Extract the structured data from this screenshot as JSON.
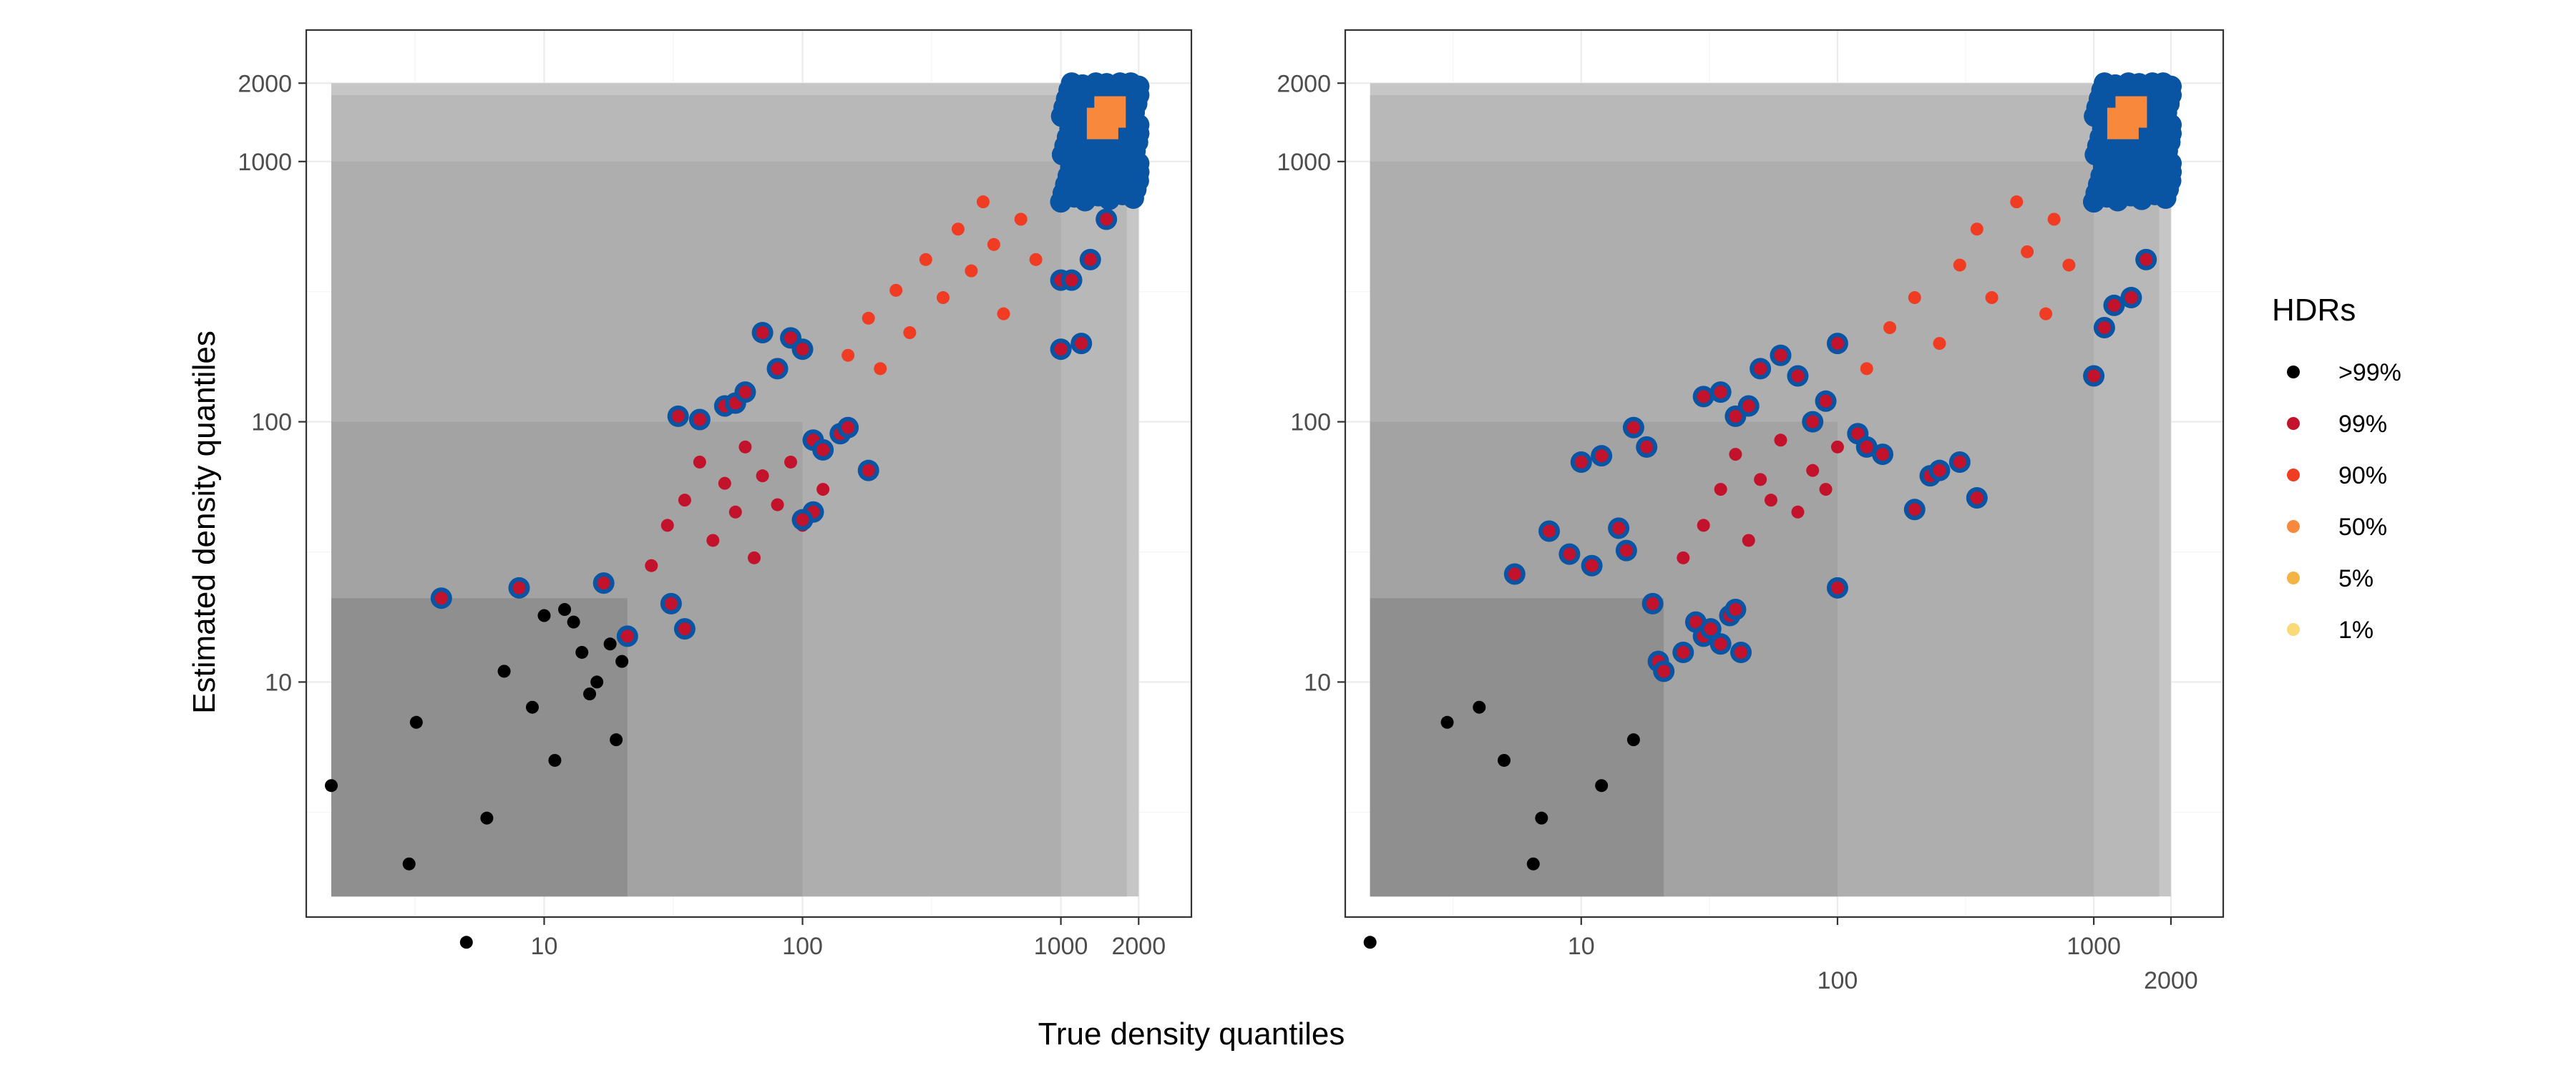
{
  "figure": {
    "xlabel": "True density quantiles",
    "ylabel": "Estimated density quantiles",
    "legend": {
      "title": "HDRs",
      "position": "right",
      "items": [
        {
          "label": ">99%",
          "color": "#000000"
        },
        {
          "label": "99%",
          "color": "#c2122c"
        },
        {
          "label": "90%",
          "color": "#f03c22"
        },
        {
          "label": "50%",
          "color": "#f8893c"
        },
        {
          "label": "5%",
          "color": "#f3b443"
        },
        {
          "label": "1%",
          "color": "#f9da78"
        }
      ]
    },
    "highlight_color": "#0a54a4",
    "band_colors": [
      "#8f8f8f",
      "#a3a3a3",
      "#aeaeae",
      "#b8b8b8",
      "#c6c6c6"
    ]
  },
  "chart_data": [
    {
      "type": "scatter",
      "scale": "log",
      "xlim": [
        1.2,
        3200
      ],
      "ylim": [
        1.25,
        3200
      ],
      "x_ticks": [
        {
          "label": "10",
          "value": 10
        },
        {
          "label": "100",
          "value": 100
        },
        {
          "label": "1000",
          "value": 1000
        },
        {
          "label": "2000",
          "value": 2000
        }
      ],
      "y_ticks": [
        {
          "label": "10",
          "value": 10
        },
        {
          "label": "100",
          "value": 100
        },
        {
          "label": "1000",
          "value": 1000
        },
        {
          "label": "2000",
          "value": 2000
        }
      ],
      "hdr_thresholds_x": [
        1.5,
        21,
        100,
        1000,
        1800,
        2000
      ],
      "hdr_thresholds_y": [
        1.5,
        21,
        100,
        1000,
        1800,
        2000
      ],
      "grid": true,
      "series": [
        {
          "hdr": ">99%",
          "points": [
            [
              1.5,
              4
            ],
            [
              3,
              2
            ],
            [
              3.2,
              7
            ],
            [
              5,
              1
            ],
            [
              6,
              3
            ],
            [
              7,
              11
            ],
            [
              9,
              8
            ],
            [
              10,
              18
            ],
            [
              11,
              5
            ],
            [
              12,
              19
            ],
            [
              13,
              17
            ],
            [
              14,
              13
            ],
            [
              15,
              9
            ],
            [
              16,
              10
            ],
            [
              18,
              14
            ],
            [
              19,
              6
            ],
            [
              20,
              12
            ]
          ]
        },
        {
          "hdr": "99%",
          "points": [
            [
              26,
              28
            ],
            [
              30,
              40
            ],
            [
              35,
              50
            ],
            [
              40,
              70
            ],
            [
              45,
              35
            ],
            [
              50,
              58
            ],
            [
              55,
              45
            ],
            [
              60,
              80
            ],
            [
              65,
              30
            ],
            [
              70,
              62
            ],
            [
              80,
              48
            ],
            [
              90,
              70
            ],
            [
              100,
              40
            ],
            [
              110,
              85
            ],
            [
              120,
              55
            ]
          ]
        },
        {
          "hdr": "90%",
          "points": [
            [
              150,
              180
            ],
            [
              180,
              250
            ],
            [
              200,
              160
            ],
            [
              230,
              320
            ],
            [
              260,
              220
            ],
            [
              300,
              420
            ],
            [
              350,
              300
            ],
            [
              400,
              550
            ],
            [
              450,
              380
            ],
            [
              500,
              700
            ],
            [
              550,
              480
            ],
            [
              600,
              260
            ],
            [
              700,
              600
            ],
            [
              800,
              420
            ]
          ]
        },
        {
          "hdr": "50%",
          "points": [
            [
              1450,
              1400
            ],
            [
              1550,
              1550
            ]
          ]
        },
        {
          "hdr": "highlighted",
          "points": [
            [
              4,
              21
            ],
            [
              8,
              23
            ],
            [
              17,
              24
            ],
            [
              21,
              15
            ],
            [
              31,
              20
            ],
            [
              35,
              16
            ],
            [
              33,
              105
            ],
            [
              40,
              102
            ],
            [
              50,
              115
            ],
            [
              55,
              118
            ],
            [
              60,
              130
            ],
            [
              70,
              220
            ],
            [
              80,
              160
            ],
            [
              90,
              210
            ],
            [
              100,
              190
            ],
            [
              110,
              85
            ],
            [
              120,
              78
            ],
            [
              140,
              90
            ],
            [
              150,
              95
            ],
            [
              180,
              65
            ],
            [
              110,
              45
            ],
            [
              100,
              42
            ],
            [
              1000,
              190
            ],
            [
              1200,
              200
            ],
            [
              1000,
              350
            ],
            [
              1100,
              350
            ],
            [
              1300,
              420
            ],
            [
              1500,
              600
            ],
            [
              1700,
              900
            ],
            [
              1800,
              1200
            ],
            [
              1900,
              1600
            ]
          ]
        }
      ]
    },
    {
      "type": "scatter",
      "scale": "log",
      "xlim": [
        1.2,
        3200
      ],
      "ylim": [
        1.25,
        3200
      ],
      "x_ticks": [
        {
          "label": "10",
          "value": 10
        },
        {
          "label": "100",
          "value": 100
        },
        {
          "label": "1000",
          "value": 1000
        },
        {
          "label": "2000",
          "value": 2000
        }
      ],
      "y_ticks": [
        {
          "label": "10",
          "value": 10
        },
        {
          "label": "100",
          "value": 100
        },
        {
          "label": "1000",
          "value": 1000
        },
        {
          "label": "2000",
          "value": 2000
        }
      ],
      "hdr_thresholds_x": [
        1.5,
        21,
        100,
        1000,
        1800,
        2000
      ],
      "hdr_thresholds_y": [
        1.5,
        21,
        100,
        1000,
        1800,
        2000
      ],
      "grid": true,
      "series": [
        {
          "hdr": ">99%",
          "points": [
            [
              1.5,
              1
            ],
            [
              3,
              7
            ],
            [
              4,
              8
            ],
            [
              5,
              5
            ],
            [
              6.5,
              2
            ],
            [
              7,
              3
            ],
            [
              12,
              4
            ],
            [
              16,
              6
            ]
          ]
        },
        {
          "hdr": "99%",
          "points": [
            [
              25,
              30
            ],
            [
              30,
              40
            ],
            [
              35,
              55
            ],
            [
              40,
              75
            ],
            [
              45,
              35
            ],
            [
              50,
              60
            ],
            [
              55,
              50
            ],
            [
              60,
              85
            ],
            [
              70,
              45
            ],
            [
              80,
              65
            ],
            [
              90,
              55
            ],
            [
              100,
              80
            ]
          ]
        },
        {
          "hdr": "90%",
          "points": [
            [
              130,
              160
            ],
            [
              160,
              230
            ],
            [
              200,
              300
            ],
            [
              250,
              200
            ],
            [
              300,
              400
            ],
            [
              350,
              550
            ],
            [
              400,
              300
            ],
            [
              500,
              700
            ],
            [
              550,
              450
            ],
            [
              650,
              260
            ],
            [
              700,
              600
            ],
            [
              800,
              400
            ]
          ]
        },
        {
          "hdr": "50%",
          "points": [
            [
              1300,
              1400
            ],
            [
              1400,
              1550
            ]
          ]
        },
        {
          "hdr": "highlighted",
          "points": [
            [
              5.5,
              26
            ],
            [
              7.5,
              38
            ],
            [
              9,
              31
            ],
            [
              10,
              70
            ],
            [
              11,
              28
            ],
            [
              12,
              74
            ],
            [
              14,
              39
            ],
            [
              15,
              32
            ],
            [
              16,
              95
            ],
            [
              18,
              80
            ],
            [
              19,
              20
            ],
            [
              20,
              12
            ],
            [
              21,
              11
            ],
            [
              25,
              13
            ],
            [
              28,
              17
            ],
            [
              30,
              15
            ],
            [
              32,
              16
            ],
            [
              35,
              14
            ],
            [
              38,
              18
            ],
            [
              40,
              19
            ],
            [
              42,
              13
            ],
            [
              30,
              125
            ],
            [
              35,
              130
            ],
            [
              40,
              105
            ],
            [
              45,
              115
            ],
            [
              50,
              160
            ],
            [
              60,
              180
            ],
            [
              70,
              150
            ],
            [
              80,
              100
            ],
            [
              90,
              120
            ],
            [
              100,
              200
            ],
            [
              100,
              23
            ],
            [
              120,
              90
            ],
            [
              130,
              80
            ],
            [
              150,
              75
            ],
            [
              200,
              46
            ],
            [
              230,
              62
            ],
            [
              250,
              65
            ],
            [
              300,
              70
            ],
            [
              350,
              51
            ],
            [
              1000,
              150
            ],
            [
              1100,
              230
            ],
            [
              1200,
              280
            ],
            [
              1400,
              300
            ],
            [
              1600,
              420
            ],
            [
              1800,
              800
            ],
            [
              1900,
              1200
            ]
          ]
        }
      ]
    }
  ]
}
